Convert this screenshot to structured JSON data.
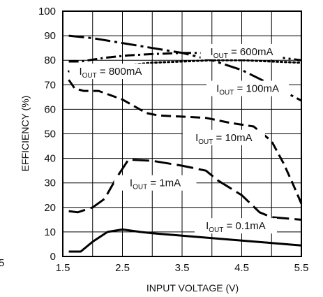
{
  "chart_data": {
    "type": "line",
    "xlabel": "INPUT VOLTAGE (V)",
    "ylabel": "EFFICIENCY (%)",
    "xlim": [
      1.5,
      5.5
    ],
    "ylim": [
      0,
      100
    ],
    "x_ticks": [
      "1.5",
      "2.5",
      "3.5",
      "4.5",
      "5.5"
    ],
    "y_ticks": [
      "0",
      "10",
      "20",
      "30",
      "40",
      "50",
      "60",
      "70",
      "80",
      "90",
      "100"
    ],
    "stray_tick_label": "5",
    "grid": true,
    "series": [
      {
        "name": "IOUT = 600mA",
        "label_parts": [
          "I",
          "OUT",
          " = 600mA"
        ],
        "style": "dash-dot",
        "points": [
          [
            1.6,
            79.5
          ],
          [
            1.8,
            79.5
          ],
          [
            2.2,
            81.0
          ],
          [
            2.6,
            82.0
          ],
          [
            3.0,
            82.5
          ],
          [
            3.5,
            83.0
          ],
          [
            4.0,
            83.0
          ],
          [
            4.5,
            82.5
          ],
          [
            5.0,
            81.5
          ],
          [
            5.5,
            80.0
          ]
        ]
      },
      {
        "name": "IOUT = 800mA",
        "label_parts": [
          "I",
          "OUT",
          " = 800mA"
        ],
        "style": "dotted",
        "points": [
          [
            1.6,
            75.5
          ],
          [
            1.7,
            74.5
          ],
          [
            1.85,
            75.5
          ],
          [
            2.2,
            77.0
          ],
          [
            2.6,
            78.0
          ],
          [
            3.0,
            79.0
          ],
          [
            3.5,
            79.5
          ],
          [
            4.0,
            80.0
          ],
          [
            4.5,
            80.0
          ],
          [
            5.0,
            79.5
          ],
          [
            5.5,
            79.0
          ]
        ]
      },
      {
        "name": "IOUT = 100mA",
        "label_parts": [
          "I",
          "OUT",
          " = 100mA"
        ],
        "style": "long-dash-dot",
        "points": [
          [
            1.6,
            90.0
          ],
          [
            2.0,
            89.0
          ],
          [
            2.5,
            87.0
          ],
          [
            3.0,
            85.0
          ],
          [
            3.5,
            83.0
          ],
          [
            4.0,
            80.0
          ],
          [
            4.5,
            76.0
          ],
          [
            5.0,
            70.0
          ],
          [
            5.5,
            63.5
          ]
        ]
      },
      {
        "name": "IOUT = 10mA",
        "label_parts": [
          "I",
          "OUT",
          " = 10mA"
        ],
        "style": "dashed",
        "points": [
          [
            1.6,
            72.0
          ],
          [
            1.7,
            68.5
          ],
          [
            1.85,
            67.5
          ],
          [
            2.1,
            67.5
          ],
          [
            2.5,
            64.0
          ],
          [
            2.9,
            58.5
          ],
          [
            3.1,
            57.5
          ],
          [
            3.5,
            57.0
          ],
          [
            3.9,
            56.5
          ],
          [
            4.3,
            54.5
          ],
          [
            4.7,
            53.0
          ],
          [
            5.0,
            47.0
          ],
          [
            5.2,
            38.0
          ],
          [
            5.35,
            30.0
          ],
          [
            5.5,
            21.5
          ]
        ]
      },
      {
        "name": "IOUT = 1mA",
        "label_parts": [
          "I",
          "OUT",
          " = 1mA"
        ],
        "style": "long-dash",
        "points": [
          [
            1.6,
            18.5
          ],
          [
            1.75,
            18.0
          ],
          [
            2.0,
            20.0
          ],
          [
            2.2,
            23.5
          ],
          [
            2.4,
            32.0
          ],
          [
            2.6,
            39.5
          ],
          [
            3.0,
            39.0
          ],
          [
            3.5,
            37.0
          ],
          [
            3.9,
            35.0
          ],
          [
            4.1,
            31.0
          ],
          [
            4.5,
            25.0
          ],
          [
            4.8,
            18.0
          ],
          [
            5.0,
            16.0
          ],
          [
            5.5,
            15.0
          ]
        ]
      },
      {
        "name": "IOUT = 0.1mA",
        "label_parts": [
          "I",
          "OUT",
          " = 0.1mA"
        ],
        "style": "solid",
        "points": [
          [
            1.6,
            2.0
          ],
          [
            1.8,
            2.0
          ],
          [
            2.0,
            6.0
          ],
          [
            2.25,
            10.0
          ],
          [
            2.5,
            11.0
          ],
          [
            2.8,
            10.0
          ],
          [
            3.0,
            9.5
          ],
          [
            3.5,
            8.5
          ],
          [
            4.0,
            7.5
          ],
          [
            4.5,
            6.5
          ],
          [
            5.0,
            5.5
          ],
          [
            5.5,
            4.5
          ]
        ]
      }
    ]
  }
}
